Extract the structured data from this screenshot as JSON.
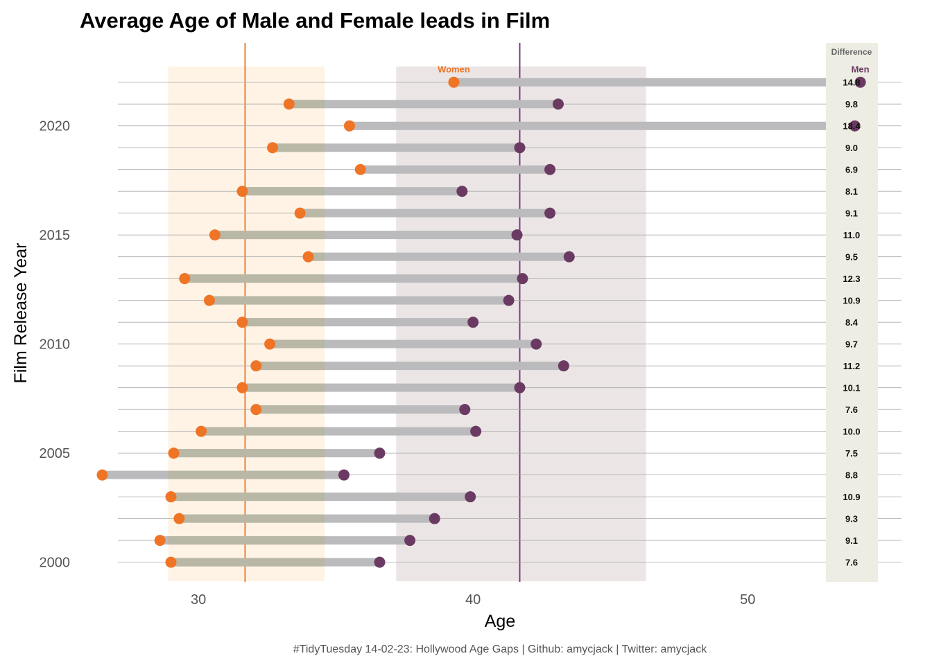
{
  "chart_data": {
    "type": "dumbbell",
    "title": "Average Age of Male and Female leads in Film",
    "xlabel": "Age",
    "ylabel": "Film Release Year",
    "caption": "#TidyTuesday 14-02-23: Hollywood Age Gaps | Github: amycjack | Twitter: amycjack",
    "xlim": [
      25.2,
      55.6
    ],
    "ylim": [
      1999.1,
      2023.8
    ],
    "x_ticks": [
      30,
      40,
      50
    ],
    "y_ticks": [
      2000,
      2005,
      2010,
      2015,
      2020
    ],
    "grid": "horizontal",
    "difference_header": "Difference",
    "series": [
      {
        "name": "Women",
        "color": "#F07426"
      },
      {
        "name": "Men",
        "color": "#6B3A62"
      }
    ],
    "points": [
      {
        "year": 2000,
        "women": 29.0,
        "men": 36.6,
        "difference": "7.6"
      },
      {
        "year": 2001,
        "women": 28.6,
        "men": 37.7,
        "difference": "9.1"
      },
      {
        "year": 2002,
        "women": 29.3,
        "men": 38.6,
        "difference": "9.3"
      },
      {
        "year": 2003,
        "women": 29.0,
        "men": 39.9,
        "difference": "10.9"
      },
      {
        "year": 2004,
        "women": 26.5,
        "men": 35.3,
        "difference": "8.8"
      },
      {
        "year": 2005,
        "women": 29.1,
        "men": 36.6,
        "difference": "7.5"
      },
      {
        "year": 2006,
        "women": 30.1,
        "men": 40.1,
        "difference": "10.0"
      },
      {
        "year": 2007,
        "women": 32.1,
        "men": 39.7,
        "difference": "7.6"
      },
      {
        "year": 2008,
        "women": 31.6,
        "men": 41.7,
        "difference": "10.1"
      },
      {
        "year": 2009,
        "women": 32.1,
        "men": 43.3,
        "difference": "11.2"
      },
      {
        "year": 2010,
        "women": 32.6,
        "men": 42.3,
        "difference": "9.7"
      },
      {
        "year": 2011,
        "women": 31.6,
        "men": 40.0,
        "difference": "8.4"
      },
      {
        "year": 2012,
        "women": 30.4,
        "men": 41.3,
        "difference": "10.9"
      },
      {
        "year": 2013,
        "women": 29.5,
        "men": 41.8,
        "difference": "12.3"
      },
      {
        "year": 2014,
        "women": 34.0,
        "men": 43.5,
        "difference": "9.5"
      },
      {
        "year": 2015,
        "women": 30.6,
        "men": 41.6,
        "difference": "11.0"
      },
      {
        "year": 2016,
        "women": 33.7,
        "men": 42.8,
        "difference": "9.1"
      },
      {
        "year": 2017,
        "women": 31.6,
        "men": 39.6,
        "difference": "8.1"
      },
      {
        "year": 2018,
        "women": 35.9,
        "men": 42.8,
        "difference": "6.9"
      },
      {
        "year": 2019,
        "women": 32.7,
        "men": 41.7,
        "difference": "9.0"
      },
      {
        "year": 2020,
        "women": 35.5,
        "men": 53.9,
        "difference": "18.4"
      },
      {
        "year": 2021,
        "women": 33.3,
        "men": 43.1,
        "difference": "9.8"
      },
      {
        "year": 2022,
        "women": 39.3,
        "men": 54.1,
        "difference": "14.8"
      }
    ],
    "reference_lines": [
      {
        "series": "Women",
        "x": 31.7
      },
      {
        "series": "Men",
        "x": 41.7
      }
    ],
    "shaded_bands": [
      {
        "series": "Women",
        "x_range": [
          28.9,
          34.6
        ]
      },
      {
        "series": "Men",
        "x_range": [
          37.2,
          46.3
        ]
      }
    ],
    "colors": {
      "women": "#F07426",
      "men": "#6B3A62",
      "women_ref_line": "#E8813A",
      "men_ref_line": "#7A3D82",
      "women_band": "#FEF3E5",
      "men_band": "#EBE6E5",
      "segment": "#BBBABD",
      "segment_in_women_band": "#B9B7A3",
      "difference_panel": "#EDEDE3",
      "gridline": "#AAAAAA"
    }
  }
}
